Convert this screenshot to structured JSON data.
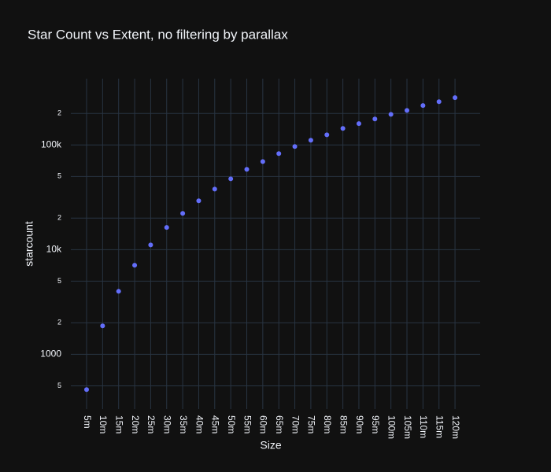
{
  "chart_data": {
    "type": "scatter",
    "title": "Star Count vs Extent, no filtering by parallax",
    "x_label": "Size",
    "y_label": "starcount",
    "categories": [
      "5m",
      "10m",
      "15m",
      "20m",
      "25m",
      "30m",
      "35m",
      "40m",
      "45m",
      "50m",
      "55m",
      "60m",
      "65m",
      "70m",
      "75m",
      "80m",
      "85m",
      "90m",
      "95m",
      "100m",
      "105m",
      "110m",
      "115m",
      "120m"
    ],
    "series": [
      {
        "name": "starcount",
        "color": "#636efa",
        "values": [
          460,
          1870,
          4000,
          7100,
          11100,
          16300,
          22200,
          29300,
          37900,
          47500,
          58500,
          69500,
          82700,
          96600,
          111000,
          125000,
          144000,
          160000,
          177000,
          196000,
          214000,
          238000,
          259000,
          283000
        ]
      }
    ],
    "log_y": true,
    "grid": true,
    "ylim": [
      300,
      430000
    ],
    "yticks": [
      {
        "value": 500,
        "label": "5"
      },
      1000,
      {
        "value": 2000,
        "label": "2"
      },
      {
        "value": 5000,
        "label": "5"
      },
      {
        "value": 10000,
        "label": "10k"
      },
      {
        "value": 20000,
        "label": "2"
      },
      {
        "value": 50000,
        "label": "5"
      },
      {
        "value": 100000,
        "label": "100k"
      },
      {
        "value": 200000,
        "label": "2"
      }
    ]
  }
}
